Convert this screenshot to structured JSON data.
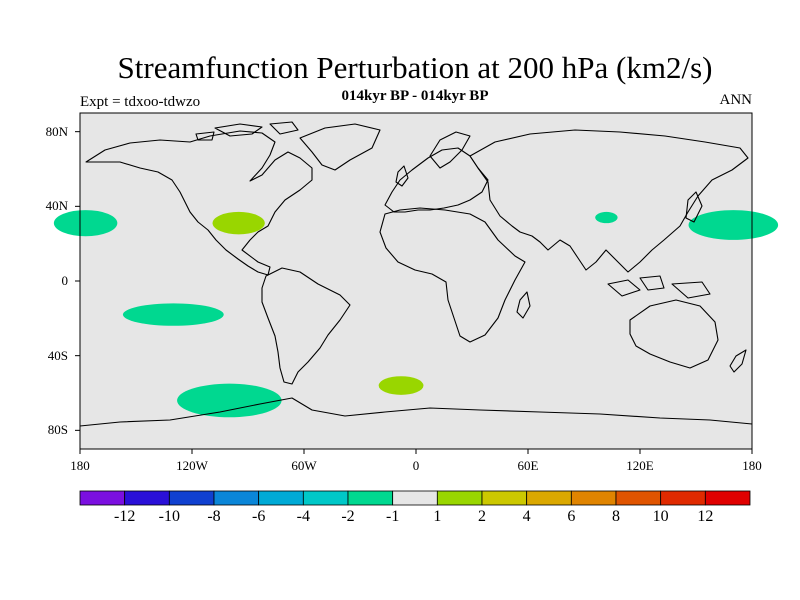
{
  "header": {
    "title": "Streamfunction Perturbation at 200 hPa (km2/s)",
    "subtitle": "014kyr BP - 014kyr BP",
    "left_label": "Expt = tdxoo-tdwzo",
    "right_label": "ANN"
  },
  "axes": {
    "lat_ticks": [
      {
        "label": "80N",
        "value": 80
      },
      {
        "label": "40N",
        "value": 40
      },
      {
        "label": "0",
        "value": 0
      },
      {
        "label": "40S",
        "value": -40
      },
      {
        "label": "80S",
        "value": -80
      }
    ],
    "lon_ticks": [
      {
        "label": "180",
        "value": -180
      },
      {
        "label": "120W",
        "value": -120
      },
      {
        "label": "60W",
        "value": -60
      },
      {
        "label": "0",
        "value": 0
      },
      {
        "label": "60E",
        "value": 60
      },
      {
        "label": "120E",
        "value": 120
      },
      {
        "label": "180",
        "value": 180
      }
    ]
  },
  "colors": {
    "land_background": "#e6e6e6",
    "coastline": "#000000",
    "negative_fill": "#00d890",
    "positive_fill": "#99d600"
  },
  "colorbar": {
    "bins": [
      "#7b0fe0",
      "#2a10d8",
      "#1040d0",
      "#0a86d8",
      "#00aad6",
      "#00c8c8",
      "#00d890",
      "#e6e6e6",
      "#99d600",
      "#ccc800",
      "#dba800",
      "#e08400",
      "#e05400",
      "#e02a00",
      "#e00000"
    ],
    "labels": [
      "-12",
      "-10",
      "-8",
      "-6",
      "-4",
      "-2",
      "-1",
      "1",
      "2",
      "4",
      "6",
      "8",
      "10",
      "12"
    ]
  },
  "anomalies": [
    {
      "name": "neg-northeast-pacific",
      "lon": -177,
      "lat": 31,
      "rlon": 17,
      "rlat": 7,
      "sign": "negative"
    },
    {
      "name": "pos-north-america",
      "lon": -95,
      "lat": 31,
      "rlon": 14,
      "rlat": 6,
      "sign": "positive"
    },
    {
      "name": "neg-central-asia",
      "lon": 102,
      "lat": 34,
      "rlon": 6,
      "rlat": 3,
      "sign": "negative"
    },
    {
      "name": "neg-northwest-pacific",
      "lon": 170,
      "lat": 30,
      "rlon": 24,
      "rlat": 8,
      "sign": "negative"
    },
    {
      "name": "neg-south-pacific",
      "lon": -130,
      "lat": -18,
      "rlon": 27,
      "rlat": 6,
      "sign": "negative"
    },
    {
      "name": "neg-southern-ocean",
      "lon": -100,
      "lat": -64,
      "rlon": 28,
      "rlat": 9,
      "sign": "negative"
    },
    {
      "name": "pos-south-atlantic",
      "lon": -8,
      "lat": -56,
      "rlon": 12,
      "rlat": 5,
      "sign": "positive"
    }
  ]
}
